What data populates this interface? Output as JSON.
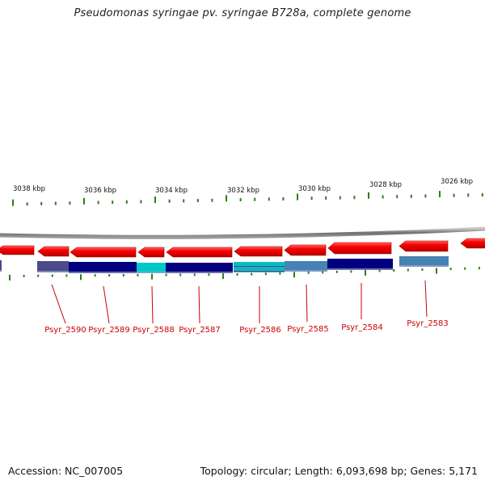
{
  "title": "Pseudomonas syringae pv. syringae B728a, complete genome",
  "footer": {
    "accession": "Accession: NC_007005",
    "summary": "Topology: circular; Length: 6,093,698 bp; Genes: 5,171"
  },
  "colors": {
    "forward_strand": "#ff0000",
    "backbone": "#808080",
    "tick": "#2e7d1a",
    "gene_label": "#cc0000",
    "cds_dark": "#000080",
    "cds_cyan": "#00c8c8",
    "cds_steel": "#4682b4",
    "cds_slate": "#4a4a8c"
  },
  "scale": {
    "unit": "kbp",
    "labels": [
      "3038 kbp",
      "3036 kbp",
      "3034 kbp",
      "3032 kbp",
      "3030 kbp",
      "3028 kbp",
      "3026 kbp"
    ]
  },
  "genes": [
    "Psyr_2590",
    "Psyr_2589",
    "Psyr_2588",
    "Psyr_2587",
    "Psyr_2586",
    "Psyr_2585",
    "Psyr_2584",
    "Psyr_2583"
  ]
}
